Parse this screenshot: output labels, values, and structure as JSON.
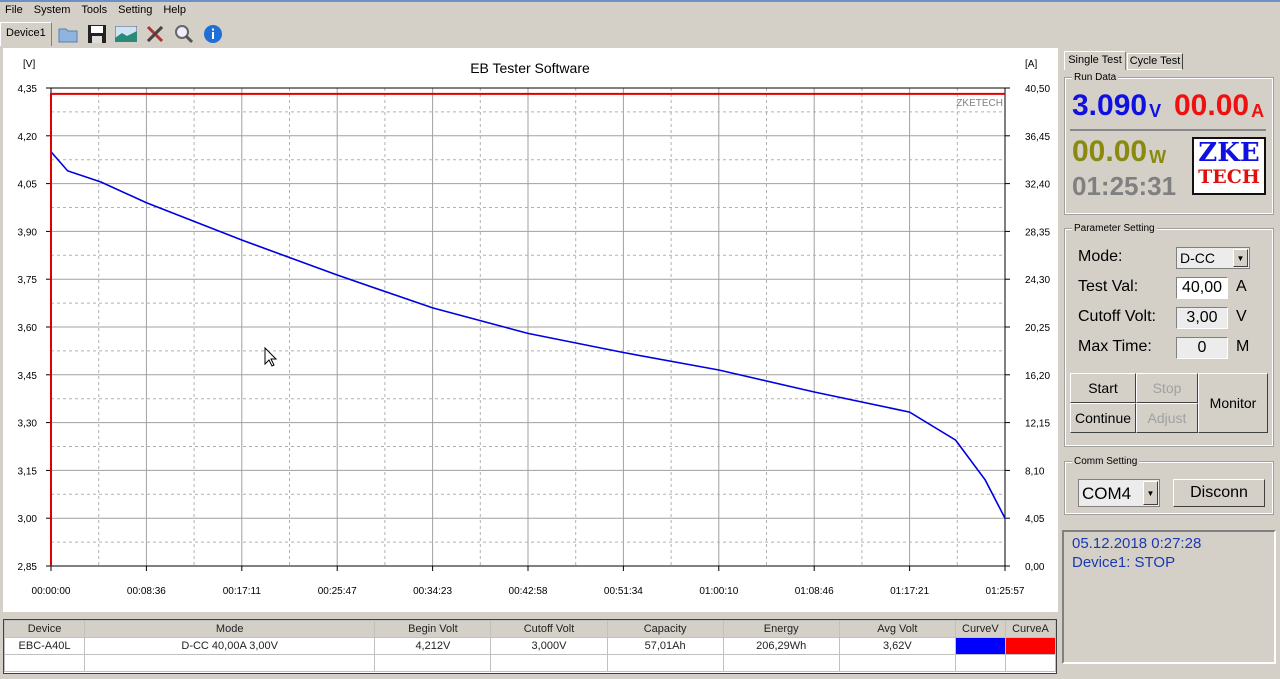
{
  "menu": [
    "File",
    "System",
    "Tools",
    "Setting",
    "Help"
  ],
  "toolbar": {
    "device_tab": "Device1",
    "icons": [
      "open-folder-icon",
      "save-icon",
      "image-icon",
      "tools-icon",
      "search-icon",
      "info-icon"
    ]
  },
  "chart_data": {
    "type": "line",
    "title": "EB Tester Software",
    "watermark": "ZKETECH",
    "ylabel": "[V]",
    "y2label": "[A]",
    "ylim": [
      2.85,
      4.35
    ],
    "y2lim": [
      0,
      40.5
    ],
    "yticks": [
      "4,35",
      "4,20",
      "4,05",
      "3,90",
      "3,75",
      "3,60",
      "3,45",
      "3,30",
      "3,15",
      "3,00",
      "2,85"
    ],
    "y2ticks": [
      "40,50",
      "36,45",
      "32,40",
      "28,35",
      "24,30",
      "20,25",
      "16,20",
      "12,15",
      "8,10",
      "4,05",
      "0,00"
    ],
    "xticks": [
      "00:00:00",
      "00:08:36",
      "00:17:11",
      "00:25:47",
      "00:34:23",
      "00:42:58",
      "00:51:34",
      "01:00:10",
      "01:08:46",
      "01:17:21",
      "01:25:57"
    ],
    "grid": true,
    "series": [
      {
        "axis": "left",
        "color": "#0000e0",
        "x": [
          "00:00:00",
          "00:01:30",
          "00:04:30",
          "00:08:36",
          "00:17:11",
          "00:25:47",
          "00:34:23",
          "00:42:58",
          "00:51:34",
          "01:00:10",
          "01:08:46",
          "01:17:21",
          "01:21:30",
          "01:24:10",
          "01:25:57"
        ],
        "values": [
          4.15,
          4.09,
          4.055,
          3.99,
          3.873,
          3.763,
          3.66,
          3.58,
          3.52,
          3.465,
          3.396,
          3.333,
          3.245,
          3.12,
          3.0
        ]
      },
      {
        "axis": "right",
        "color": "#e00000",
        "x": [
          "00:00:00",
          "01:25:57"
        ],
        "values": [
          40.0,
          40.0
        ]
      }
    ]
  },
  "right": {
    "tabs": [
      "Single Test",
      "Cycle Test"
    ],
    "run_data": {
      "label": "Run Data",
      "voltage": "3.090",
      "v_unit": "V",
      "current": "00.00",
      "a_unit": "A",
      "power": "00.00",
      "w_unit": "W",
      "time": "01:25:31",
      "logo_top": "ZKE",
      "logo_bottom": "TECH"
    },
    "param": {
      "label": "Parameter Setting",
      "mode_label": "Mode:",
      "mode": "D-CC",
      "test_label": "Test Val:",
      "test_val": "40,00",
      "test_unit": "A",
      "cutoff_label": "Cutoff Volt:",
      "cutoff": "3,00",
      "cutoff_unit": "V",
      "maxtime_label": "Max Time:",
      "maxtime": "0",
      "maxtime_unit": "M",
      "start": "Start",
      "stop": "Stop",
      "continue": "Continue",
      "adjust": "Adjust",
      "monitor": "Monitor"
    },
    "comm": {
      "label": "Comm Setting",
      "port": "COM4",
      "disconn": "Disconn"
    },
    "status": {
      "datetime": "05.12.2018 0:27:28",
      "state": "Device1: STOP"
    }
  },
  "table": {
    "headers": [
      "Device",
      "Mode",
      "Begin Volt",
      "Cutoff Volt",
      "Capacity",
      "Energy",
      "Avg Volt",
      "CurveV",
      "CurveA"
    ],
    "row": [
      "EBC-A40L",
      "D-CC  40,00A  3,00V",
      "4,212V",
      "3,000V",
      "57,01Ah",
      "206,29Wh",
      "3,62V"
    ],
    "curve_colors": [
      "#0000ff",
      "#ff0000"
    ]
  }
}
